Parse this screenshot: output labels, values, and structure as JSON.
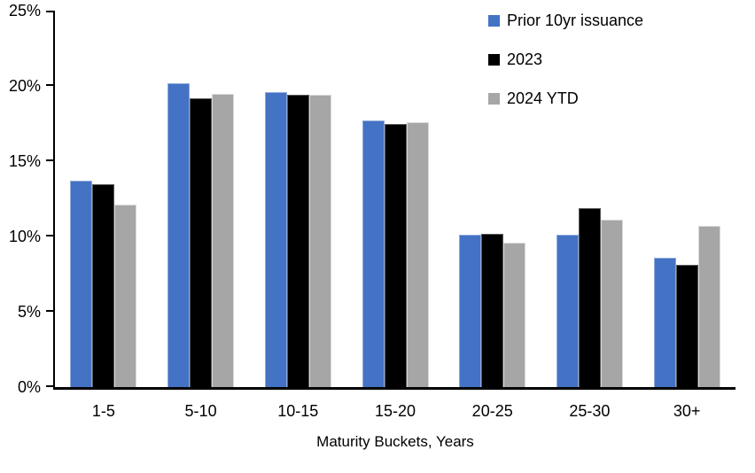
{
  "chart_data": {
    "type": "bar",
    "title": "",
    "xlabel": "Maturity Buckets, Years",
    "ylabel": "",
    "ylim": [
      0,
      25
    ],
    "y_ticks": [
      "0%",
      "5%",
      "10%",
      "15%",
      "20%",
      "25%"
    ],
    "grid": false,
    "legend_position": "top-right",
    "categories": [
      "1-5",
      "5-10",
      "10-15",
      "15-20",
      "20-25",
      "25-30",
      "30+"
    ],
    "series": [
      {
        "name": "Prior 10yr issuance",
        "color": "#4472C4",
        "border_color": "#8FAADC",
        "values": [
          13.7,
          20.2,
          19.6,
          17.7,
          10.1,
          10.1,
          8.6
        ]
      },
      {
        "name": "2023",
        "color": "#000000",
        "border_color": "#595959",
        "values": [
          13.5,
          19.2,
          19.4,
          17.5,
          10.2,
          11.9,
          8.1
        ]
      },
      {
        "name": "2024 YTD",
        "color": "#A6A6A6",
        "border_color": "#D9D9D9",
        "values": [
          12.1,
          19.5,
          19.4,
          17.6,
          9.6,
          11.1,
          10.7
        ]
      }
    ]
  }
}
